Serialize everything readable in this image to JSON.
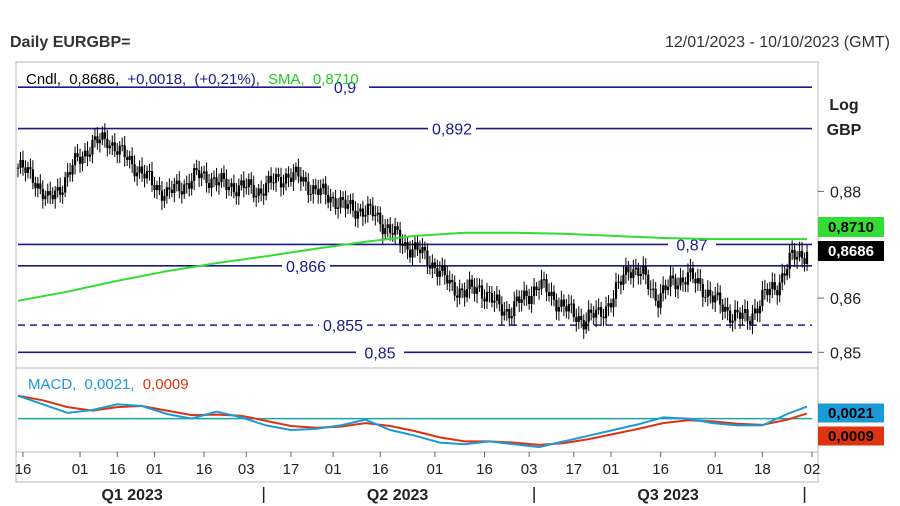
{
  "header": {
    "title": "Daily EURGBP=",
    "date_range": "12/01/2023 - 10/10/2023 (GMT)"
  },
  "colors": {
    "candle": "#000000",
    "sma": "#33dd33",
    "level_line": "#1a1a8c",
    "macd": "#1a9ad6",
    "signal": "#dd3311",
    "zero_line": "#1aa5a5",
    "legend_text": "#1a1a8c"
  },
  "chart_data": [
    {
      "type": "candlestick",
      "legend": {
        "cndl_label": "Cndl,",
        "cndl_value": "0,8686,",
        "change": "+0,0018,",
        "change_pct": "(+0,21%),",
        "sma_label": "SMA,",
        "sma_value": "0,8710"
      },
      "y_scale": "log",
      "y_unit_labels": [
        "Log",
        "GBP"
      ],
      "ylim": [
        0.8475,
        0.9045
      ],
      "y_ticks": [
        {
          "value": 0.88,
          "label": "0,88"
        },
        {
          "value": 0.86,
          "label": "0,86"
        },
        {
          "value": 0.85,
          "label": "0,85"
        }
      ],
      "levels": [
        {
          "value": 0.9,
          "label": "0,9",
          "style": "solid"
        },
        {
          "value": 0.892,
          "label": "0,892",
          "style": "solid"
        },
        {
          "value": 0.87,
          "label": "0,87",
          "style": "solid"
        },
        {
          "value": 0.866,
          "label": "0,866",
          "style": "solid"
        },
        {
          "value": 0.855,
          "label": "0,855",
          "style": "dashed"
        },
        {
          "value": 0.85,
          "label": "0,85",
          "style": "solid"
        }
      ],
      "last_price": {
        "value": 0.8686,
        "label": "0,8686"
      },
      "sma_last": {
        "value": 0.871,
        "label": "0,8710"
      },
      "close_path": [
        [
          0,
          0.8845
        ],
        [
          6,
          0.883
        ],
        [
          12,
          0.878
        ],
        [
          18,
          0.8815
        ],
        [
          24,
          0.886
        ],
        [
          30,
          0.889
        ],
        [
          36,
          0.89
        ],
        [
          42,
          0.887
        ],
        [
          48,
          0.8845
        ],
        [
          54,
          0.8815
        ],
        [
          60,
          0.8795
        ],
        [
          66,
          0.881
        ],
        [
          72,
          0.883
        ],
        [
          78,
          0.8825
        ],
        [
          84,
          0.881
        ],
        [
          90,
          0.881
        ],
        [
          96,
          0.88
        ],
        [
          102,
          0.8815
        ],
        [
          108,
          0.883
        ],
        [
          114,
          0.8825
        ],
        [
          120,
          0.88
        ],
        [
          126,
          0.879
        ],
        [
          132,
          0.877
        ],
        [
          138,
          0.8765
        ],
        [
          144,
          0.8755
        ],
        [
          150,
          0.8725
        ],
        [
          156,
          0.87
        ],
        [
          162,
          0.8685
        ],
        [
          168,
          0.866
        ],
        [
          174,
          0.8625
        ],
        [
          180,
          0.861
        ],
        [
          186,
          0.862
        ],
        [
          192,
          0.859
        ],
        [
          198,
          0.8575
        ],
        [
          204,
          0.86
        ],
        [
          210,
          0.8625
        ],
        [
          216,
          0.86
        ],
        [
          222,
          0.8575
        ],
        [
          228,
          0.856
        ],
        [
          234,
          0.857
        ],
        [
          240,
          0.86
        ],
        [
          246,
          0.866
        ],
        [
          252,
          0.864
        ],
        [
          258,
          0.86
        ],
        [
          264,
          0.863
        ],
        [
          270,
          0.864
        ],
        [
          276,
          0.862
        ],
        [
          282,
          0.859
        ],
        [
          288,
          0.857
        ],
        [
          294,
          0.856
        ],
        [
          300,
          0.86
        ],
        [
          306,
          0.8625
        ],
        [
          312,
          0.8675
        ],
        [
          318,
          0.8686
        ]
      ],
      "sma_path": [
        [
          0,
          0.8595
        ],
        [
          20,
          0.8612
        ],
        [
          40,
          0.8632
        ],
        [
          60,
          0.865
        ],
        [
          80,
          0.8665
        ],
        [
          100,
          0.8678
        ],
        [
          120,
          0.8692
        ],
        [
          140,
          0.8705
        ],
        [
          160,
          0.8716
        ],
        [
          180,
          0.8722
        ],
        [
          200,
          0.8722
        ],
        [
          220,
          0.872
        ],
        [
          240,
          0.8716
        ],
        [
          260,
          0.8712
        ],
        [
          280,
          0.871
        ],
        [
          300,
          0.871
        ],
        [
          318,
          0.871
        ]
      ]
    },
    {
      "type": "line",
      "legend": {
        "macd_label": "MACD,",
        "macd_value": "0,0021,",
        "signal_value": "0,0009"
      },
      "ylim": [
        -0.0055,
        0.0085
      ],
      "zero": 0,
      "macd_last": {
        "value": 0.0021,
        "label": "0,0021"
      },
      "signal_last": {
        "value": 0.0009,
        "label": "0,0009"
      },
      "macd_path": [
        [
          0,
          0.004
        ],
        [
          10,
          0.0025
        ],
        [
          20,
          0.001
        ],
        [
          30,
          0.0015
        ],
        [
          40,
          0.0025
        ],
        [
          50,
          0.0022
        ],
        [
          60,
          0.0008
        ],
        [
          70,
          0.0
        ],
        [
          80,
          0.0012
        ],
        [
          90,
          0.0002
        ],
        [
          100,
          -0.0012
        ],
        [
          110,
          -0.002
        ],
        [
          120,
          -0.0018
        ],
        [
          130,
          -0.0012
        ],
        [
          140,
          -0.0002
        ],
        [
          150,
          -0.002
        ],
        [
          160,
          -0.003
        ],
        [
          170,
          -0.0042
        ],
        [
          180,
          -0.0045
        ],
        [
          190,
          -0.004
        ],
        [
          200,
          -0.0045
        ],
        [
          210,
          -0.005
        ],
        [
          220,
          -0.004
        ],
        [
          230,
          -0.003
        ],
        [
          240,
          -0.002
        ],
        [
          250,
          -0.001
        ],
        [
          260,
          0.0002
        ],
        [
          270,
          0.0
        ],
        [
          280,
          -0.0008
        ],
        [
          290,
          -0.0012
        ],
        [
          300,
          -0.0012
        ],
        [
          310,
          0.0008
        ],
        [
          318,
          0.0021
        ]
      ],
      "signal_path": [
        [
          0,
          0.004
        ],
        [
          10,
          0.0032
        ],
        [
          20,
          0.002
        ],
        [
          30,
          0.0014
        ],
        [
          40,
          0.002
        ],
        [
          50,
          0.0022
        ],
        [
          60,
          0.0014
        ],
        [
          70,
          0.0006
        ],
        [
          80,
          0.0007
        ],
        [
          90,
          0.0005
        ],
        [
          100,
          -0.0004
        ],
        [
          110,
          -0.0013
        ],
        [
          120,
          -0.0016
        ],
        [
          130,
          -0.0014
        ],
        [
          140,
          -0.0008
        ],
        [
          150,
          -0.0013
        ],
        [
          160,
          -0.0022
        ],
        [
          170,
          -0.0033
        ],
        [
          180,
          -0.004
        ],
        [
          190,
          -0.004
        ],
        [
          200,
          -0.0042
        ],
        [
          210,
          -0.0046
        ],
        [
          220,
          -0.0043
        ],
        [
          230,
          -0.0036
        ],
        [
          240,
          -0.0027
        ],
        [
          250,
          -0.0018
        ],
        [
          260,
          -0.0008
        ],
        [
          270,
          -0.0003
        ],
        [
          280,
          -0.0005
        ],
        [
          290,
          -0.0009
        ],
        [
          300,
          -0.0011
        ],
        [
          310,
          -0.0002
        ],
        [
          318,
          0.0009
        ]
      ]
    }
  ],
  "x_axis": {
    "n_days": 320,
    "ticks": [
      {
        "day": 2,
        "label": "16"
      },
      {
        "day": 25,
        "label": "01"
      },
      {
        "day": 40,
        "label": "16"
      },
      {
        "day": 55,
        "label": "01"
      },
      {
        "day": 75,
        "label": "16"
      },
      {
        "day": 92,
        "label": "03"
      },
      {
        "day": 110,
        "label": "17"
      },
      {
        "day": 127,
        "label": "01"
      },
      {
        "day": 146,
        "label": "16"
      },
      {
        "day": 168,
        "label": "01"
      },
      {
        "day": 188,
        "label": "16"
      },
      {
        "day": 206,
        "label": "03"
      },
      {
        "day": 224,
        "label": "17"
      },
      {
        "day": 239,
        "label": "01"
      },
      {
        "day": 259,
        "label": "16"
      },
      {
        "day": 281,
        "label": "01"
      },
      {
        "day": 300,
        "label": "18"
      },
      {
        "day": 320,
        "label": "02"
      }
    ],
    "quarters": [
      {
        "day": 46,
        "label": "Q1 2023"
      },
      {
        "day": 153,
        "label": "Q2 2023"
      },
      {
        "day": 262,
        "label": "Q3 2023"
      }
    ],
    "quarter_separators": [
      99,
      208,
      317
    ]
  }
}
